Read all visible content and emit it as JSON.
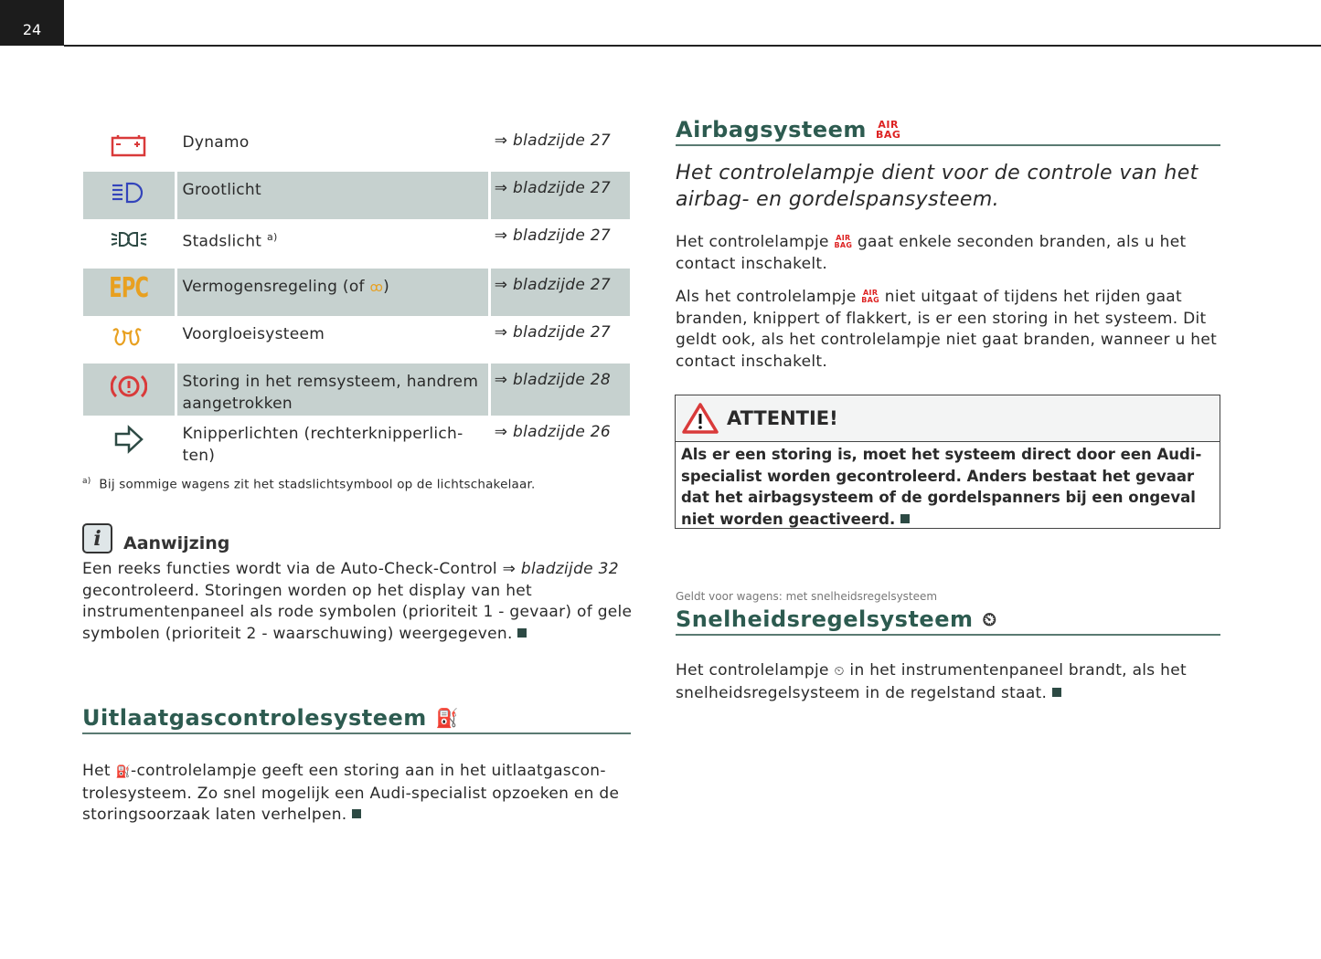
{
  "page_number": "24",
  "table": {
    "rows": [
      {
        "icon": "battery-icon",
        "label": "Dynamo",
        "ref_arrow": "⇒",
        "ref": "bladzijde 27",
        "shaded": false
      },
      {
        "icon": "high-beam-icon",
        "label": "Grootlicht",
        "ref_arrow": "⇒",
        "ref": "bladzijde 27",
        "shaded": true
      },
      {
        "icon": "parking-light-icon",
        "label": "Stadslicht",
        "sup": "a)",
        "ref_arrow": "⇒",
        "ref": "bladzijde 27",
        "shaded": false
      },
      {
        "icon": "epc-icon",
        "icon_text": "EPC",
        "label": "Vermogensregeling (of",
        "label_end": ")",
        "ref_arrow": "⇒",
        "ref": "bladzijde 27",
        "shaded": true
      },
      {
        "icon": "glow-plug-icon",
        "label": "Voorgloeisysteem",
        "ref_arrow": "⇒",
        "ref": "bladzijde 27",
        "shaded": false
      },
      {
        "icon": "brake-warning-icon",
        "label": "Storing in het remsysteem, handrem aangetrokken",
        "ref_arrow": "⇒",
        "ref": "bladzijde 28",
        "shaded": true
      },
      {
        "icon": "turn-signal-icon",
        "label": "Knipperlichten (rechterknipperlich-ten)",
        "ref_arrow": "⇒",
        "ref": "bladzijde 26",
        "shaded": false
      }
    ]
  },
  "footnote": {
    "mark": "a)",
    "text": "Bij sommige wagens zit het stadslichtsymbool op de lichtschakelaar."
  },
  "aanwijzing": {
    "title": "Aanwijzing",
    "text_a": "Een reeks functies wordt via de Auto-Check-Control ⇒ ",
    "ref": "bladzijde 32",
    "text_b": " gecontroleerd. Storingen worden op het display van het instrumenten­paneel als rode symbolen (prioriteit 1 - gevaar) of gele symbolen (prioriteit 2 - waarschuwing) weergegeven."
  },
  "uitlaat": {
    "title": "Uitlaatgascontrolesysteem",
    "text_a": "Het ",
    "text_b": "-controlelampje geeft een storing aan in het uitlaatgascon­trolesysteem. Zo snel mogelijk een Audi-specialist opzoeken en de storingsoorzaak laten verhelpen."
  },
  "airbag": {
    "title": "Airbagsysteem",
    "icon_text": [
      "AIR",
      "BAG"
    ],
    "lead": "Het controlelampje dient voor de controle van het airbag- en gordelspansysteem.",
    "p1_a": "Het controlelampje ",
    "p1_b": " gaat enkele seconden branden, als u het contact inschakelt.",
    "p2_a": "Als het controlelampje ",
    "p2_b": " niet uitgaat of tijdens het rijden gaat branden, knippert of flakkert, is er een storing in het systeem. Dit geldt ook, als het controlelampje niet gaat branden, wanneer u het contact inschakelt.",
    "warning_title": "ATTENTIE!",
    "warning_text": "Als er een storing is, moet het systeem direct door een Audi-speci­alist worden gecontroleerd. Anders bestaat het gevaar dat het airbagsysteem of de gordelspanners bij een ongeval niet worden geactiveerd."
  },
  "snelheid": {
    "applies": "Geldt voor wagens: met snelheidsregelsysteem",
    "title": "Snelheidsregelsysteem",
    "p_a": "Het controlelampje ",
    "p_b": " in het instrumentenpaneel brandt, als het snelheidsregelsysteem in de regelstand staat."
  },
  "colors": {
    "heading": "#2d5b50",
    "shaded_row": "#c6d1cf",
    "red": "#d93a3a",
    "yellow": "#e8a020",
    "blue": "#3344bb"
  }
}
